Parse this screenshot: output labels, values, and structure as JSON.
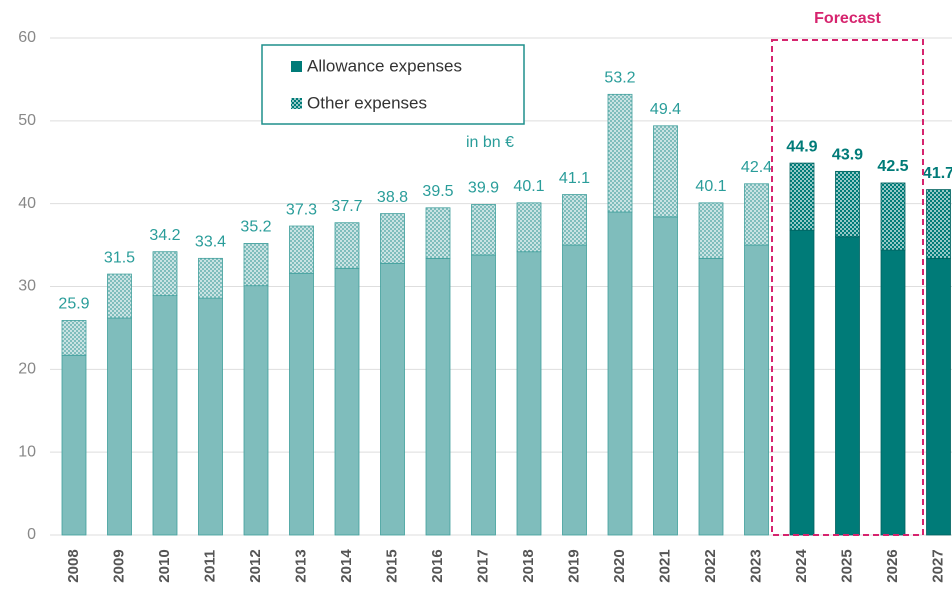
{
  "chart_data": {
    "type": "stacked_bar",
    "categories": [
      "2008",
      "2009",
      "2010",
      "2011",
      "2012",
      "2013",
      "2014",
      "2015",
      "2016",
      "2017",
      "2018",
      "2019",
      "2020",
      "2021",
      "2022",
      "2023",
      "2024",
      "2025",
      "2026",
      "2027"
    ],
    "series": [
      {
        "name": "Allowance expenses",
        "color": "#7fbdbc",
        "values": [
          21.7,
          26.2,
          28.9,
          28.6,
          30.1,
          31.6,
          32.2,
          32.8,
          33.4,
          33.8,
          34.2,
          35.0,
          39.0,
          38.4,
          33.4,
          35.0,
          36.8,
          36.0,
          34.4,
          33.4
        ]
      },
      {
        "name": "Other expenses",
        "color": "#7fbdbc",
        "pattern": "dots",
        "values": [
          4.2,
          5.3,
          5.3,
          4.8,
          5.1,
          5.7,
          5.5,
          6.0,
          6.1,
          6.1,
          5.9,
          6.1,
          14.2,
          11.0,
          6.7,
          7.4,
          8.1,
          7.9,
          8.1,
          8.3
        ]
      }
    ],
    "totals": [
      25.9,
      31.5,
      34.2,
      33.4,
      35.2,
      37.3,
      37.7,
      38.8,
      39.5,
      39.9,
      40.1,
      41.1,
      53.2,
      49.4,
      40.1,
      42.4,
      44.9,
      43.9,
      42.5,
      41.7
    ],
    "unit_note": "in bn €",
    "forecast": {
      "label": "Forecast",
      "categories": [
        "2024",
        "2025",
        "2026",
        "2027"
      ],
      "boxed": [
        "2024",
        "2025",
        "2026"
      ],
      "color": "#007b78",
      "box_color": "#d6246e"
    },
    "ylim": [
      0,
      60
    ],
    "yticks": [
      0,
      10,
      20,
      30,
      40,
      50,
      60
    ],
    "grid": true
  }
}
